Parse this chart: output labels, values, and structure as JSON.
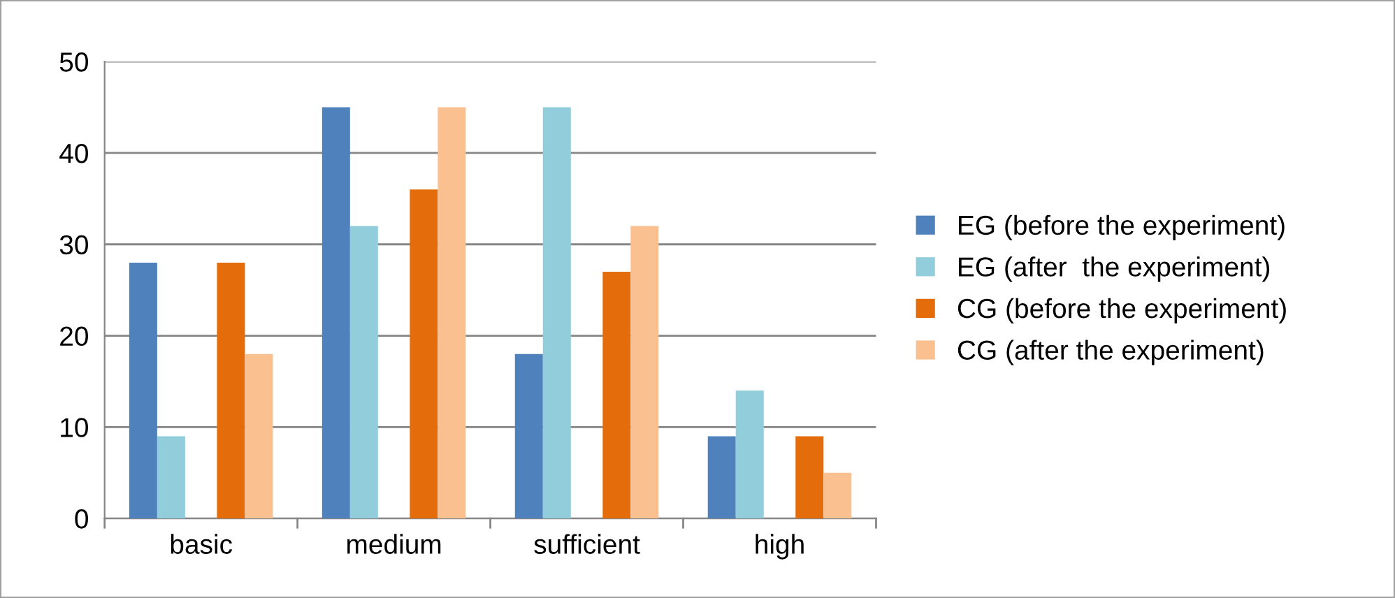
{
  "chart_data": {
    "type": "bar",
    "categories": [
      "basic",
      "medium",
      "sufficient",
      "high"
    ],
    "series": [
      {
        "name": "EG (before the experiment)",
        "color": "#4f81bd",
        "values": [
          28,
          45,
          18,
          9
        ]
      },
      {
        "name": "EG (after  the experiment)",
        "color": "#92cddc",
        "values": [
          9,
          32,
          45,
          14
        ]
      },
      {
        "name": "CG (before the experiment)",
        "color": "#e46c0a",
        "values": [
          28,
          36,
          27,
          9
        ]
      },
      {
        "name": "CG (after the experiment)",
        "color": "#fac090",
        "values": [
          18,
          45,
          32,
          5
        ]
      }
    ],
    "ylim": [
      0,
      50
    ],
    "yticks": [
      0,
      10,
      20,
      30,
      40,
      50
    ],
    "grid": "y",
    "legend": "right"
  }
}
